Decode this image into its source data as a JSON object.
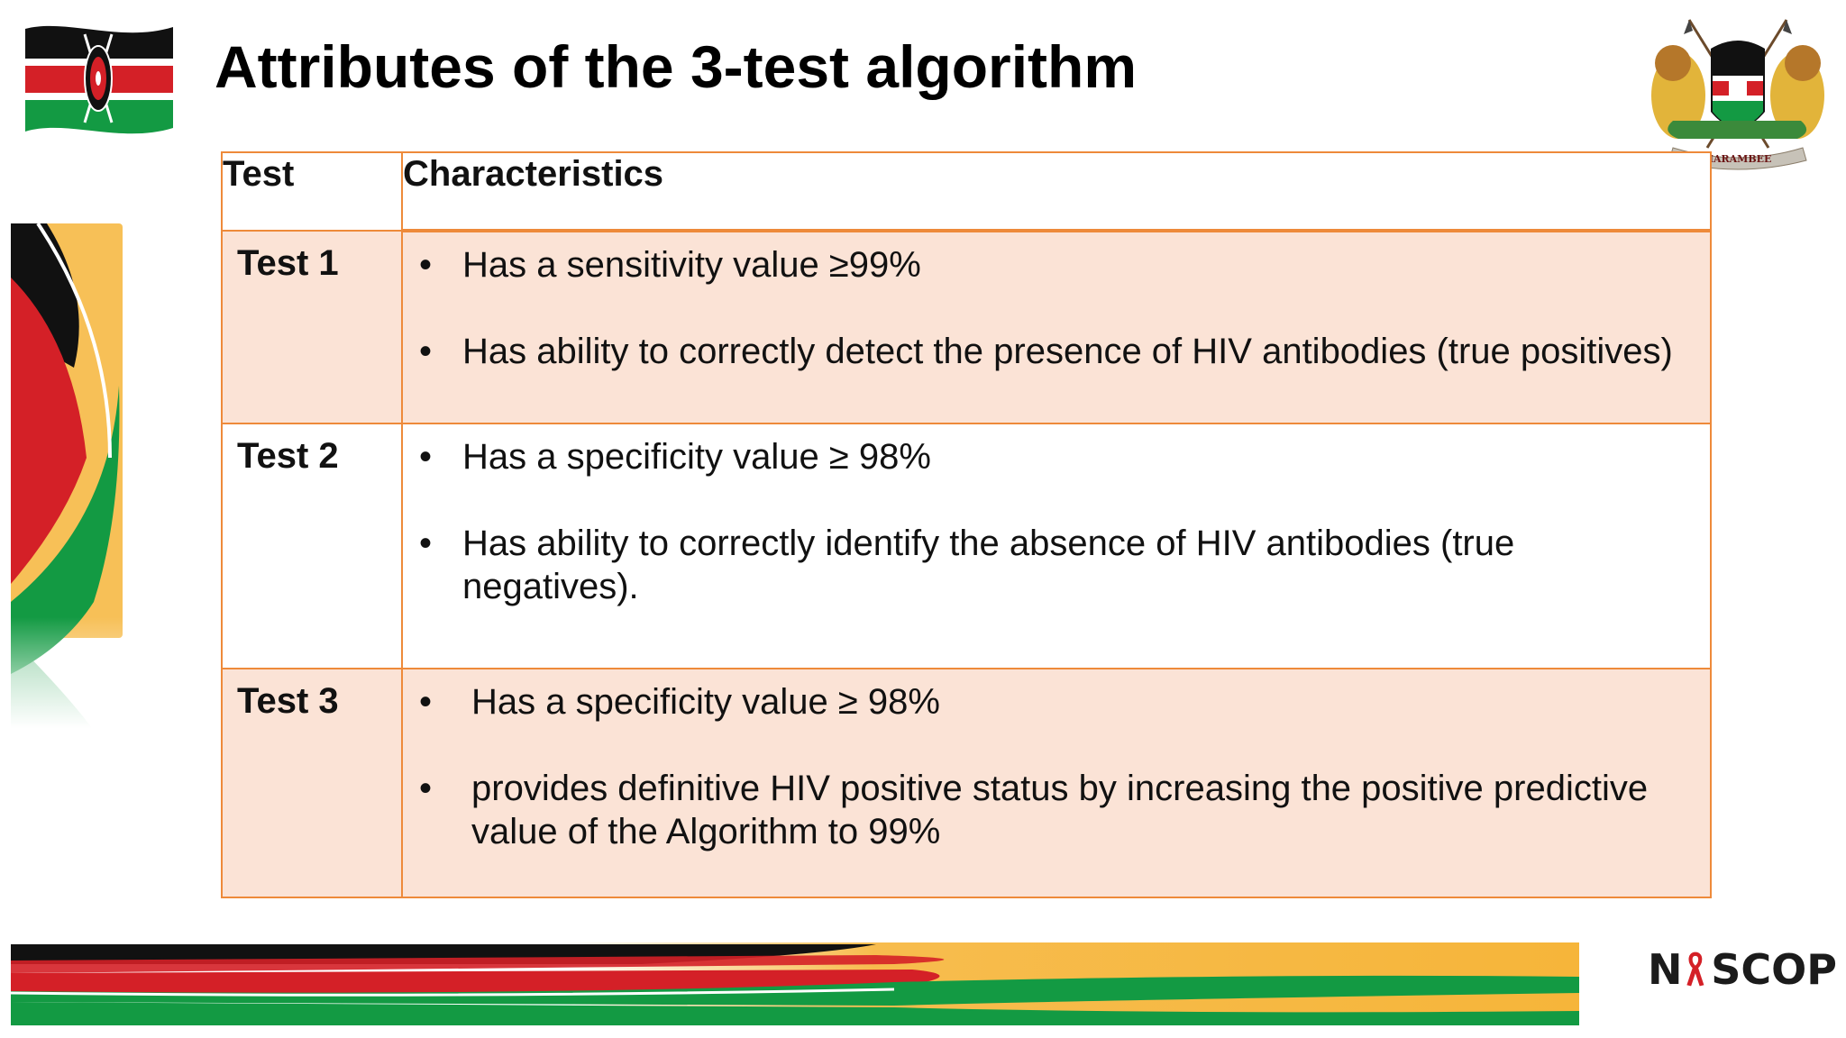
{
  "slide": {
    "title": "Attributes of the 3-test algorithm"
  },
  "table": {
    "headers": [
      "Test",
      "Characteristics"
    ],
    "rows": [
      {
        "test": "Test 1",
        "items": [
          "Has  a sensitivity value  ≥99%",
          "Has ability to correctly detect the presence of HIV antibodies (true positives)"
        ]
      },
      {
        "test": "Test 2",
        "items": [
          "Has a specificity value ≥ 98%",
          "Has ability to correctly identify the absence of  HIV antibodies (true negatives)."
        ]
      },
      {
        "test": "Test 3",
        "items": [
          "Has a specificity value  ≥ 98%",
          "provides definitive HIV positive status by increasing  the positive predictive value of the Algorithm to 99%"
        ]
      }
    ]
  },
  "logos": {
    "flag_icon": "kenya-flag-icon",
    "crest_icon": "kenya-coat-of-arms-icon",
    "crest_motto": "HARAMBEE",
    "nascop_letters": [
      "N",
      "SCOP"
    ],
    "nascop_icon": "red-ribbon-icon"
  },
  "colors": {
    "table_border": "#ee8a3a",
    "row_shade": "#fbe3d6",
    "kenya_black": "#111111",
    "kenya_red": "#d42027",
    "kenya_green": "#139a43",
    "ribbon_gold": "#f6b53a"
  }
}
